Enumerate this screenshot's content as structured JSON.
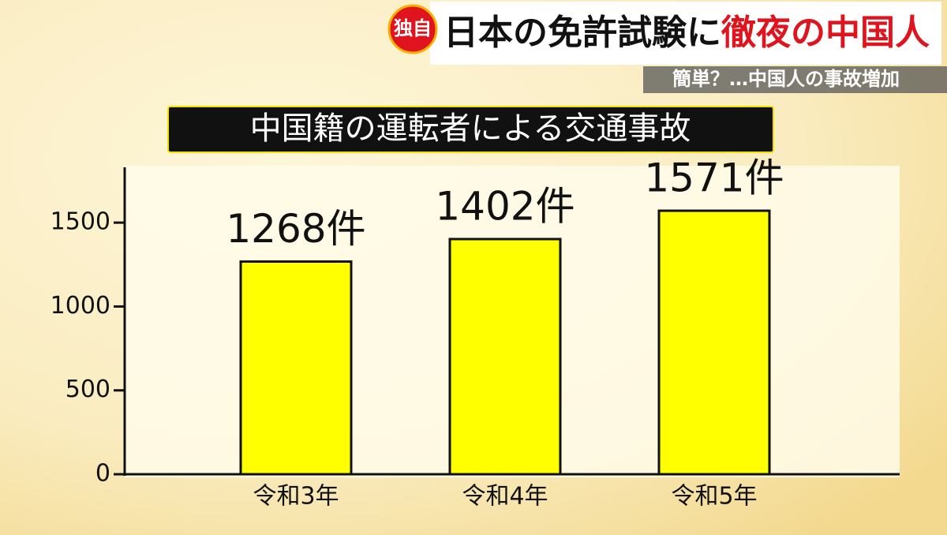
{
  "banner": {
    "tag": "独自",
    "headline": "日本の免許試験に",
    "headline_highlight": "徹夜の中国人",
    "subheadline": "簡単？…中国人の事故増加"
  },
  "chart_data": {
    "type": "bar",
    "title": "中国籍の運転者による交通事故",
    "categories": [
      "令和3年",
      "令和4年",
      "令和5年"
    ],
    "values": [
      1268,
      1402,
      1571
    ],
    "value_labels": [
      "1268件",
      "1402件",
      "1571件"
    ],
    "color": "#ffff00",
    "ylim": [
      0,
      1830
    ],
    "yticks": [
      0,
      500,
      1000,
      1500
    ]
  }
}
